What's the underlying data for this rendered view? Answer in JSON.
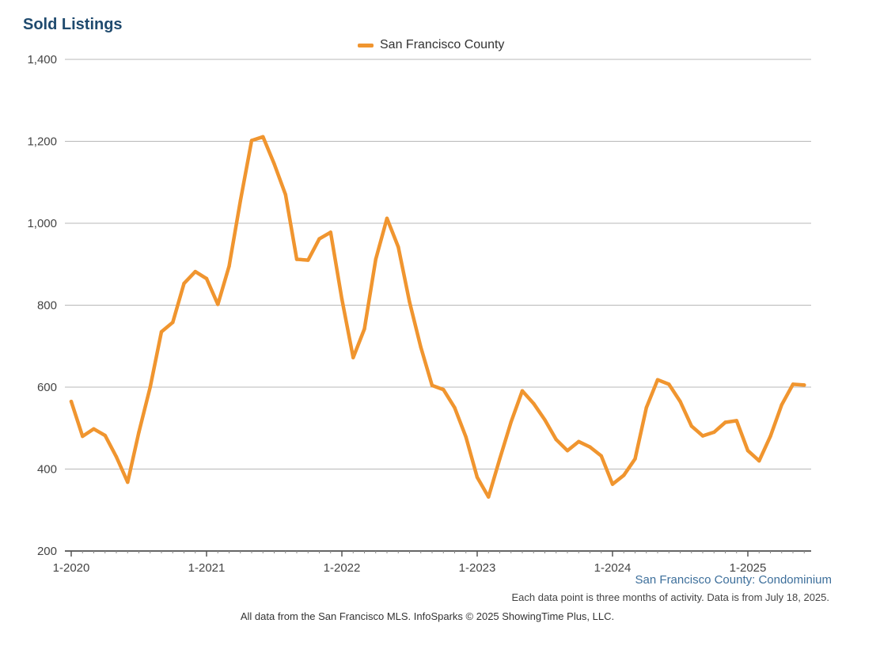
{
  "chart_data": {
    "type": "line",
    "title": "Sold Listings",
    "x_ticks": [
      "1-2020",
      "1-2021",
      "1-2022",
      "1-2023",
      "1-2024",
      "1-2025"
    ],
    "y_ticks": [
      "200",
      "400",
      "600",
      "800",
      "1,000",
      "1,200",
      "1,400"
    ],
    "ylim": [
      200,
      1400
    ],
    "xlim": [
      "1-2020",
      "6-2025"
    ],
    "grid": true,
    "legend_placement": "top-center",
    "series": [
      {
        "name": "San Francisco County",
        "color": "#f0952f",
        "x": [
          "1-2020",
          "2-2020",
          "3-2020",
          "4-2020",
          "5-2020",
          "6-2020",
          "7-2020",
          "8-2020",
          "9-2020",
          "10-2020",
          "11-2020",
          "12-2020",
          "1-2021",
          "2-2021",
          "3-2021",
          "4-2021",
          "5-2021",
          "6-2021",
          "7-2021",
          "8-2021",
          "9-2021",
          "10-2021",
          "11-2021",
          "12-2021",
          "1-2022",
          "2-2022",
          "3-2022",
          "4-2022",
          "5-2022",
          "6-2022",
          "7-2022",
          "8-2022",
          "9-2022",
          "10-2022",
          "11-2022",
          "12-2022",
          "1-2023",
          "2-2023",
          "3-2023",
          "4-2023",
          "5-2023",
          "6-2023",
          "7-2023",
          "8-2023",
          "9-2023",
          "10-2023",
          "11-2023",
          "12-2023",
          "1-2024",
          "2-2024",
          "3-2024",
          "4-2024",
          "5-2024",
          "6-2024",
          "7-2024",
          "8-2024",
          "9-2024",
          "10-2024",
          "11-2024",
          "12-2024",
          "1-2025",
          "2-2025",
          "3-2025",
          "4-2025",
          "5-2025",
          "6-2025"
        ],
        "values": [
          565,
          480,
          498,
          482,
          430,
          368,
          490,
          600,
          735,
          758,
          853,
          882,
          865,
          802,
          895,
          1055,
          1202,
          1211,
          1145,
          1070,
          912,
          910,
          962,
          978,
          815,
          672,
          742,
          912,
          1012,
          942,
          808,
          697,
          604,
          594,
          550,
          478,
          380,
          332,
          425,
          515,
          591,
          560,
          520,
          472,
          445,
          467,
          454,
          432,
          363,
          385,
          425,
          550,
          618,
          607,
          565,
          505,
          481,
          490,
          514,
          518,
          445,
          420,
          480,
          557,
          607,
          605
        ]
      }
    ]
  },
  "legend": {
    "label": "San Francisco County",
    "color": "#f0952f"
  },
  "subtitle": "San Francisco County: Condominium",
  "note": "Each data point is three months of activity. Data is from July 18, 2025.",
  "source": "All data from the San Francisco MLS. InfoSparks © 2025 ShowingTime Plus, LLC."
}
